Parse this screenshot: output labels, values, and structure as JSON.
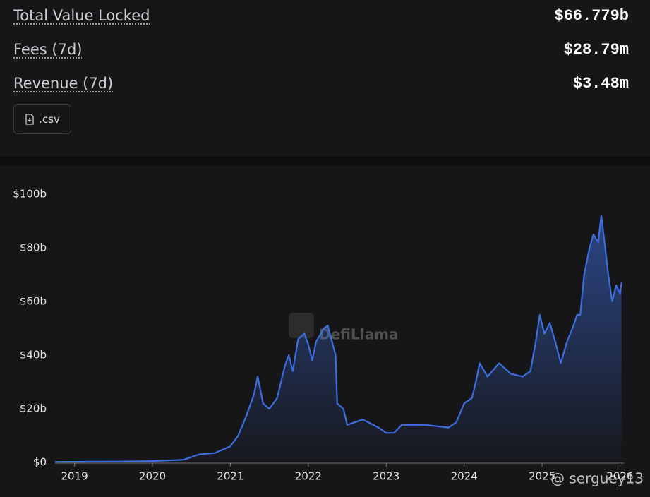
{
  "stats": [
    {
      "label": "Total Value Locked",
      "value": "$66.779b"
    },
    {
      "label": "Fees (7d)",
      "value": "$28.79m"
    },
    {
      "label": "Revenue (7d)",
      "value": "$3.48m"
    }
  ],
  "csv_button": ".csv",
  "watermark": "DefiLlama",
  "credit": "@ serguey13",
  "chart_data": {
    "type": "area",
    "x": [
      2018.75,
      2019.5,
      2020.0,
      2020.4,
      2020.6,
      2020.8,
      2021.0,
      2021.1,
      2021.2,
      2021.3,
      2021.35,
      2021.42,
      2021.5,
      2021.6,
      2021.7,
      2021.75,
      2021.8,
      2021.87,
      2021.95,
      2022.0,
      2022.05,
      2022.1,
      2022.2,
      2022.25,
      2022.35,
      2022.37,
      2022.45,
      2022.5,
      2022.7,
      2022.9,
      2023.0,
      2023.1,
      2023.2,
      2023.5,
      2023.8,
      2023.9,
      2024.0,
      2024.1,
      2024.15,
      2024.2,
      2024.3,
      2024.45,
      2024.6,
      2024.75,
      2024.85,
      2024.92,
      2024.97,
      2025.03,
      2025.1,
      2025.17,
      2025.24,
      2025.32,
      2025.39,
      2025.45,
      2025.49,
      2025.54,
      2025.61,
      2025.66,
      2025.72,
      2025.76,
      2025.81,
      2025.85,
      2025.9,
      2025.95,
      2026.0,
      2026.02
    ],
    "values": [
      0.2,
      0.3,
      0.5,
      1,
      3,
      3.5,
      6,
      10,
      17,
      25,
      32,
      22,
      20,
      24,
      36,
      40,
      34,
      46,
      48,
      44,
      38,
      45,
      50,
      51,
      40,
      22,
      20,
      14,
      16,
      13,
      11,
      11,
      14,
      14,
      13,
      15,
      22,
      24,
      30,
      37,
      32,
      37,
      33,
      32,
      34,
      45,
      55,
      48,
      52,
      45,
      37,
      45,
      50,
      55,
      55,
      70,
      80,
      85,
      82,
      92,
      80,
      70,
      60,
      66,
      63,
      67
    ],
    "color": "#3d6ee0",
    "xlim": [
      2018.75,
      2026.05
    ],
    "xticks": [
      2019,
      2020,
      2021,
      2022,
      2023,
      2024,
      2025,
      2026
    ],
    "ylim": [
      0,
      100
    ],
    "yticks": [
      {
        "value": 0,
        "label": "$0"
      },
      {
        "value": 20,
        "label": "$20b"
      },
      {
        "value": 40,
        "label": "$40b"
      },
      {
        "value": 60,
        "label": "$60b"
      },
      {
        "value": 80,
        "label": "$80b"
      },
      {
        "value": 100,
        "label": "$100b"
      }
    ]
  }
}
